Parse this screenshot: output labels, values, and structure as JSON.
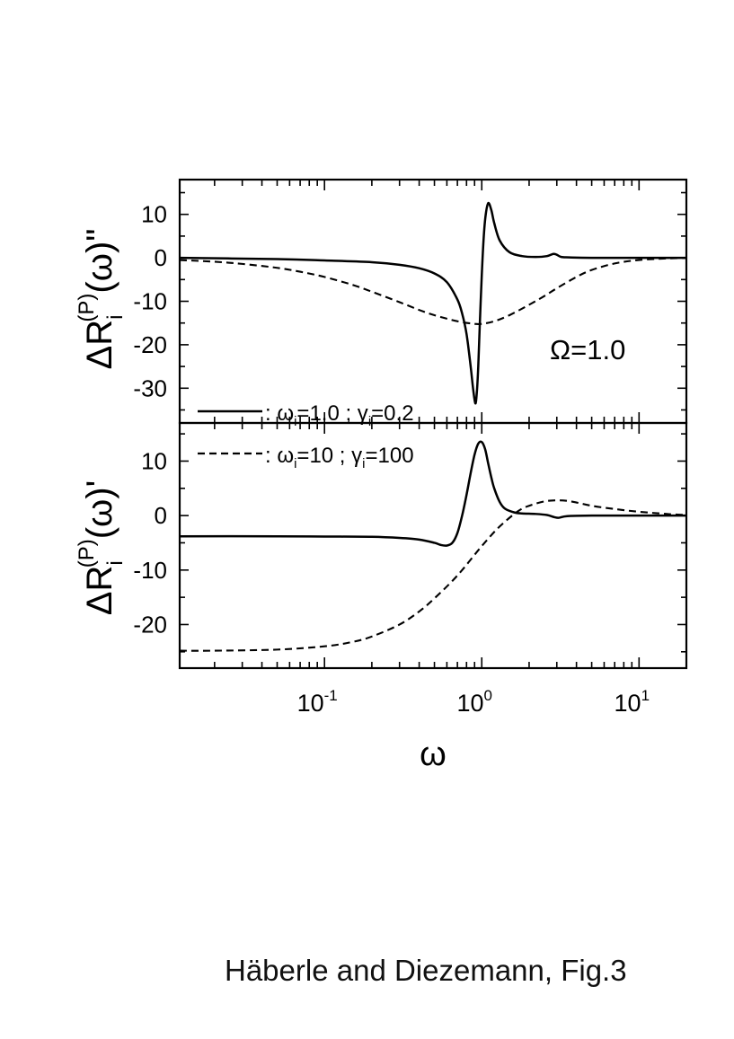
{
  "caption": "Häberle and Diezemann, Fig.3",
  "chart_data": [
    {
      "type": "line",
      "panel": "top",
      "ylabel": {
        "base": "ΔR",
        "sub": "i",
        "sup": "(P)",
        "tail": "(ω)\""
      },
      "annotation": "Ω=1.0",
      "x_scale": "log",
      "xlim": [
        0.012,
        20
      ],
      "ylim": [
        -38,
        18
      ],
      "yticks": [
        -30,
        -20,
        -10,
        0,
        10
      ],
      "ytick_labels": [
        "-30",
        "-20",
        "-10",
        "0",
        "10"
      ],
      "grid": false,
      "legend": {
        "placement": "bottom-left",
        "entries": [
          {
            "style": "solid",
            "prefix": ": ω",
            "sub1": "i",
            "mid": "=1.0 ; γ",
            "sub2": "i",
            "suffix": "=0.2"
          },
          {
            "style": "dashed",
            "prefix": ": ω",
            "sub1": "i",
            "mid": "=10 ; γ",
            "sub2": "i",
            "suffix": "=100"
          }
        ]
      },
      "series": [
        {
          "style": "solid",
          "x": [
            0.012,
            0.05,
            0.1,
            0.2,
            0.3,
            0.4,
            0.5,
            0.6,
            0.7,
            0.75,
            0.8,
            0.85,
            0.88,
            0.91,
            0.93,
            0.95,
            0.97,
            1.0,
            1.03,
            1.06,
            1.1,
            1.15,
            1.2,
            1.3,
            1.5,
            1.8,
            2.2,
            2.6,
            2.85,
            3.0,
            3.2,
            3.6,
            5,
            10,
            20
          ],
          "y": [
            0,
            -0.3,
            -0.6,
            -1.0,
            -1.6,
            -2.4,
            -3.6,
            -5.6,
            -9.6,
            -12.8,
            -17.5,
            -25,
            -30,
            -33.5,
            -31,
            -25,
            -16,
            -4,
            5,
            10,
            12.6,
            11,
            8,
            4,
            1.3,
            0.4,
            0.2,
            0.4,
            0.9,
            0.7,
            0.2,
            0.1,
            0,
            0,
            0
          ]
        },
        {
          "style": "dashed",
          "x": [
            0.012,
            0.02,
            0.03,
            0.05,
            0.07,
            0.1,
            0.15,
            0.2,
            0.3,
            0.4,
            0.5,
            0.7,
            0.9,
            1.0,
            1.2,
            1.5,
            2,
            2.5,
            3,
            4,
            5,
            7,
            10,
            15,
            20
          ],
          "y": [
            -0.5,
            -0.9,
            -1.4,
            -2.3,
            -3.2,
            -4.4,
            -6.2,
            -7.8,
            -10.2,
            -12,
            -13.2,
            -14.6,
            -15.2,
            -15.2,
            -14.6,
            -13.2,
            -10.8,
            -8.8,
            -7,
            -4.4,
            -2.8,
            -1.3,
            -0.5,
            -0.15,
            -0.05
          ]
        }
      ]
    },
    {
      "type": "line",
      "panel": "bottom",
      "ylabel": {
        "base": "ΔR",
        "sub": "i",
        "sup": "(P)",
        "tail": "(ω)'"
      },
      "xlabel": "ω",
      "x_scale": "log",
      "xlim": [
        0.012,
        20
      ],
      "ylim": [
        -28,
        17
      ],
      "xticks": [
        0.1,
        1,
        10
      ],
      "xtick_labels": [
        {
          "base": "10",
          "exp": "-1"
        },
        {
          "base": "10",
          "exp": "0"
        },
        {
          "base": "10",
          "exp": "1"
        }
      ],
      "yticks": [
        -20,
        -10,
        0,
        10
      ],
      "ytick_labels": [
        "-20",
        "-10",
        "0",
        "10"
      ],
      "grid": false,
      "series": [
        {
          "style": "solid",
          "x": [
            0.012,
            0.05,
            0.1,
            0.2,
            0.3,
            0.4,
            0.5,
            0.55,
            0.6,
            0.65,
            0.7,
            0.75,
            0.8,
            0.85,
            0.9,
            0.95,
            1.0,
            1.05,
            1.1,
            1.15,
            1.2,
            1.3,
            1.4,
            1.6,
            1.8,
            2.2,
            2.6,
            2.9,
            3.1,
            3.5,
            5,
            10,
            20
          ],
          "y": [
            -3.8,
            -3.8,
            -3.85,
            -3.9,
            -4.1,
            -4.4,
            -5.0,
            -5.4,
            -5.5,
            -5.0,
            -3.2,
            0,
            3.8,
            7.8,
            11.2,
            13.2,
            13.5,
            12.2,
            9.5,
            7,
            5,
            2.5,
            1.3,
            0.6,
            0.4,
            0.3,
            0.1,
            -0.3,
            -0.4,
            -0.1,
            0,
            0,
            0
          ]
        },
        {
          "style": "dashed",
          "x": [
            0.012,
            0.02,
            0.05,
            0.1,
            0.15,
            0.2,
            0.3,
            0.4,
            0.5,
            0.7,
            1.0,
            1.3,
            1.7,
            2.0,
            2.5,
            3.0,
            3.5,
            4,
            5,
            7,
            10,
            15,
            20
          ],
          "y": [
            -24.8,
            -24.8,
            -24.6,
            -24,
            -23.2,
            -22.2,
            -20,
            -17.6,
            -15.2,
            -11,
            -5.6,
            -2,
            0.8,
            1.8,
            2.6,
            2.8,
            2.7,
            2.4,
            1.8,
            1.2,
            0.7,
            0.3,
            0.1
          ]
        }
      ]
    }
  ]
}
